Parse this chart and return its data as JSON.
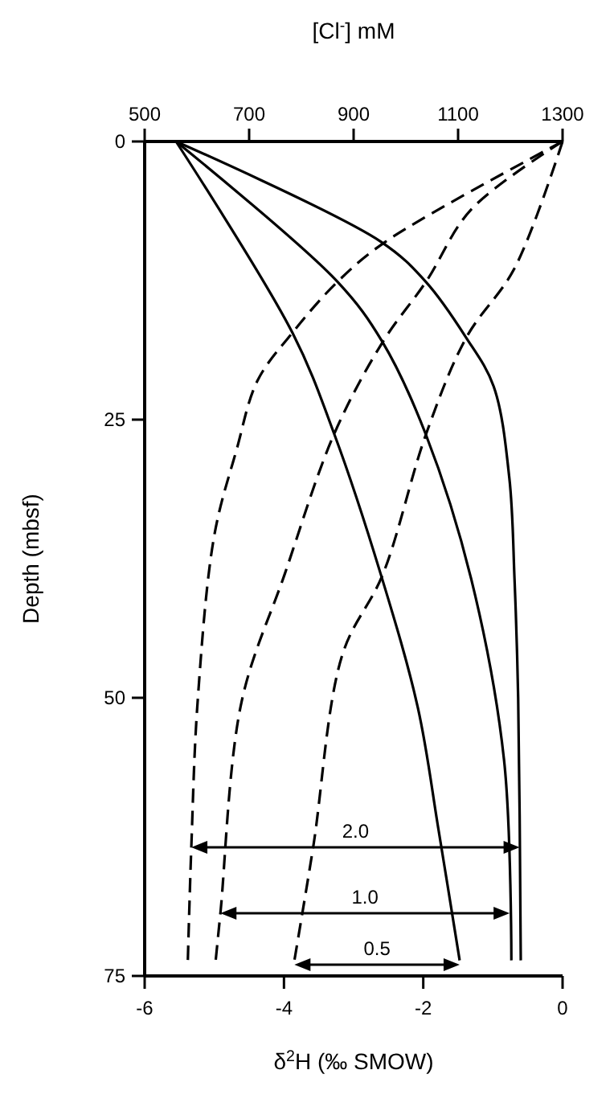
{
  "chart_data": {
    "type": "line",
    "xlabel": "δ$^{2}$H (‰ SMOW)",
    "x2label": "[Cl$^{-}$] mM",
    "ylabel": "Depth (mbsf)",
    "xlim": [
      -6,
      0
    ],
    "xticks": [
      -6,
      -4,
      -2,
      0
    ],
    "x2lim": [
      500,
      1300
    ],
    "x2ticks": [
      500,
      700,
      900,
      1100,
      1300
    ],
    "ylim": [
      75,
      0
    ],
    "yticks": [
      0,
      25,
      50,
      75
    ],
    "marker": "none",
    "series": [
      {
        "color": "#000000",
        "line_style": "dashed",
        "x": [
          0,
          -2.54,
          -3.23,
          -3.88,
          -4.38,
          -4.68,
          -5.0,
          -5.24,
          -5.33,
          -5.38
        ],
        "values": [
          0,
          9,
          12.6,
          17.2,
          21.5,
          27.7,
          35.4,
          50.4,
          63.4,
          73.6
        ]
      },
      {
        "color": "#000000",
        "line_style": "dashed",
        "x": [
          0,
          -1.31,
          -1.96,
          -2.58,
          -3.28,
          -3.99,
          -4.61,
          -4.91,
          -4.98
        ],
        "values": [
          0,
          6.1,
          12.6,
          18,
          26.3,
          38.9,
          50.4,
          69.2,
          73.6
        ]
      },
      {
        "color": "#000000",
        "line_style": "dashed",
        "x": [
          0,
          -0.69,
          -1.38,
          -1.96,
          -2.58,
          -3.16,
          -3.58,
          -3.85
        ],
        "values": [
          0,
          11.4,
          17.6,
          26.3,
          38.9,
          46.1,
          63.4,
          73.6
        ]
      },
      {
        "color": "#000000",
        "line_style": "solid",
        "axis": "x2",
        "x": [
          560,
          952,
          1038,
          1115,
          1168,
          1198,
          1208,
          1215,
          1220
        ],
        "values": [
          0,
          9,
          12.6,
          17.6,
          22,
          30.2,
          39.3,
          50,
          73.6
        ]
      },
      {
        "color": "#000000",
        "line_style": "solid",
        "axis": "x2",
        "x": [
          560,
          869,
          955,
          1038,
          1125,
          1188,
          1202
        ],
        "values": [
          0,
          12.6,
          18,
          26.3,
          39.3,
          55.6,
          73.6
        ]
      },
      {
        "color": "#000000",
        "line_style": "solid",
        "axis": "x2",
        "x": [
          560,
          783,
          863,
          952,
          1023,
          1063,
          1103
        ],
        "values": [
          0,
          17.2,
          26.3,
          38.9,
          50.9,
          62,
          73.6
        ]
      }
    ],
    "annotations": [
      "2.0",
      "1.0",
      "0.5"
    ]
  }
}
